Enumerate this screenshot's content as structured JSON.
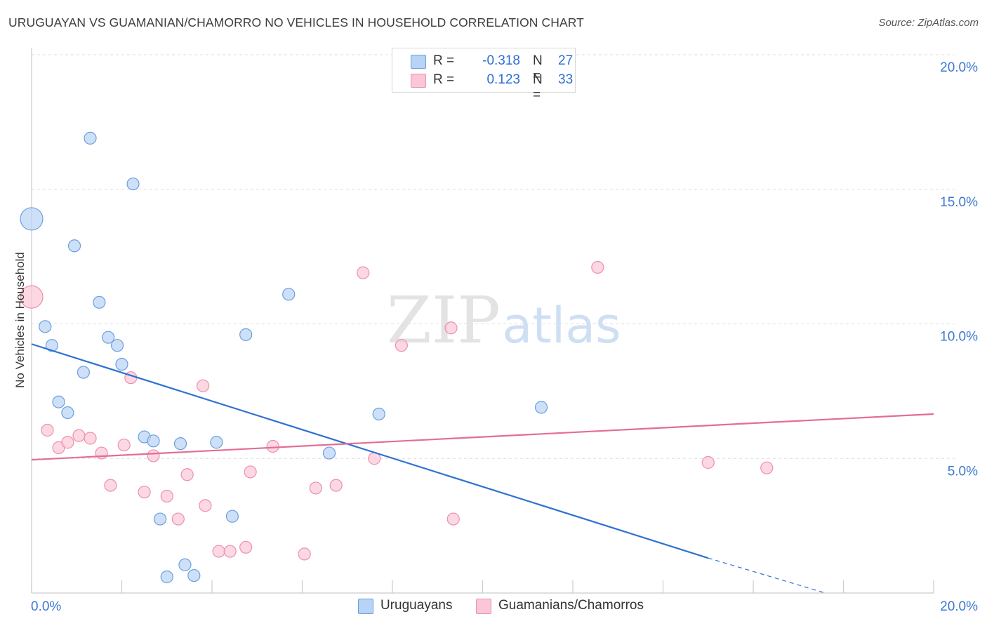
{
  "title": "URUGUAYAN VS GUAMANIAN/CHAMORRO NO VEHICLES IN HOUSEHOLD CORRELATION CHART",
  "source": "Source: ZipAtlas.com",
  "watermark": {
    "zip": "ZIP",
    "atlas": "atlas"
  },
  "legend": {
    "rows": [
      {
        "r_label": "R =",
        "r_value": "-0.318",
        "n_label": "N =",
        "n_value": "27"
      },
      {
        "r_label": "R =",
        "r_value": "0.123",
        "n_label": "N =",
        "n_value": "33"
      }
    ]
  },
  "bottom_legend": {
    "series1": "Uruguayans",
    "series2": "Guamanians/Chamorros"
  },
  "colors": {
    "blue_fill": "#b8d3f5",
    "blue_stroke": "#6a9fe0",
    "blue_line": "#2e72d2",
    "pink_fill": "#f9c7d6",
    "pink_stroke": "#ee8fae",
    "pink_line": "#e46d93",
    "tick_label": "#3c78d0",
    "grid": "#dddddd"
  },
  "chart_data": {
    "type": "scatter",
    "title": "URUGUAYAN VS GUAMANIAN/CHAMORRO NO VEHICLES IN HOUSEHOLD CORRELATION CHART",
    "xlabel": "",
    "ylabel": "No Vehicles in Household",
    "xlim": [
      0,
      20
    ],
    "ylim": [
      0,
      20
    ],
    "x_tick_labels": [
      "0.0%",
      "20.0%"
    ],
    "y_ticks": [
      5,
      10,
      15,
      20
    ],
    "y_tick_labels": [
      "5.0%",
      "10.0%",
      "15.0%",
      "20.0%"
    ],
    "grid": true,
    "legend_placement": "top-center",
    "series": [
      {
        "name": "Uruguayans",
        "color": "#6a9fe0",
        "points": [
          {
            "x": 0.0,
            "y": 13.9,
            "big": true
          },
          {
            "x": 1.3,
            "y": 16.9
          },
          {
            "x": 2.25,
            "y": 15.2
          },
          {
            "x": 0.95,
            "y": 12.9
          },
          {
            "x": 1.5,
            "y": 10.8
          },
          {
            "x": 0.3,
            "y": 9.9
          },
          {
            "x": 0.45,
            "y": 9.2
          },
          {
            "x": 1.7,
            "y": 9.5
          },
          {
            "x": 1.9,
            "y": 9.2
          },
          {
            "x": 2.0,
            "y": 8.5
          },
          {
            "x": 1.15,
            "y": 8.2
          },
          {
            "x": 0.6,
            "y": 7.1
          },
          {
            "x": 0.8,
            "y": 6.7
          },
          {
            "x": 2.5,
            "y": 5.8
          },
          {
            "x": 2.7,
            "y": 5.65
          },
          {
            "x": 3.3,
            "y": 5.55
          },
          {
            "x": 4.1,
            "y": 5.6
          },
          {
            "x": 4.75,
            "y": 9.6
          },
          {
            "x": 5.7,
            "y": 11.1
          },
          {
            "x": 7.7,
            "y": 6.65
          },
          {
            "x": 6.6,
            "y": 5.2
          },
          {
            "x": 11.3,
            "y": 6.9
          },
          {
            "x": 2.85,
            "y": 2.75
          },
          {
            "x": 4.45,
            "y": 2.85
          },
          {
            "x": 3.4,
            "y": 1.05
          },
          {
            "x": 3.0,
            "y": 0.6
          },
          {
            "x": 3.6,
            "y": 0.65
          }
        ],
        "trend": {
          "x0": 0.0,
          "y0": 9.25,
          "x1": 15.0,
          "y1": 1.3,
          "dash_x1": 17.6,
          "dash_y1": 0.0
        }
      },
      {
        "name": "Guamanians/Chamorros",
        "color": "#ee8fae",
        "points": [
          {
            "x": 0.0,
            "y": 11.0,
            "big": true
          },
          {
            "x": 0.35,
            "y": 6.05
          },
          {
            "x": 0.6,
            "y": 5.4
          },
          {
            "x": 0.8,
            "y": 5.6
          },
          {
            "x": 1.05,
            "y": 5.85
          },
          {
            "x": 1.3,
            "y": 5.75
          },
          {
            "x": 1.55,
            "y": 5.2
          },
          {
            "x": 2.05,
            "y": 5.5
          },
          {
            "x": 2.7,
            "y": 5.1
          },
          {
            "x": 2.2,
            "y": 8.0
          },
          {
            "x": 3.8,
            "y": 7.7
          },
          {
            "x": 5.35,
            "y": 5.45
          },
          {
            "x": 1.75,
            "y": 4.0
          },
          {
            "x": 2.5,
            "y": 3.75
          },
          {
            "x": 3.0,
            "y": 3.6
          },
          {
            "x": 3.45,
            "y": 4.4
          },
          {
            "x": 4.85,
            "y": 4.5
          },
          {
            "x": 3.85,
            "y": 3.25
          },
          {
            "x": 3.25,
            "y": 2.75
          },
          {
            "x": 6.3,
            "y": 3.9
          },
          {
            "x": 6.75,
            "y": 4.0
          },
          {
            "x": 7.6,
            "y": 5.0
          },
          {
            "x": 7.35,
            "y": 11.9
          },
          {
            "x": 8.2,
            "y": 9.2
          },
          {
            "x": 9.3,
            "y": 9.85
          },
          {
            "x": 12.55,
            "y": 12.1
          },
          {
            "x": 9.35,
            "y": 2.75
          },
          {
            "x": 4.15,
            "y": 1.55
          },
          {
            "x": 4.4,
            "y": 1.55
          },
          {
            "x": 4.75,
            "y": 1.7
          },
          {
            "x": 6.05,
            "y": 1.45
          },
          {
            "x": 15.0,
            "y": 4.85
          },
          {
            "x": 16.3,
            "y": 4.65
          }
        ],
        "trend": {
          "x0": 0.0,
          "y0": 4.95,
          "x1": 20.0,
          "y1": 6.65
        }
      }
    ]
  }
}
